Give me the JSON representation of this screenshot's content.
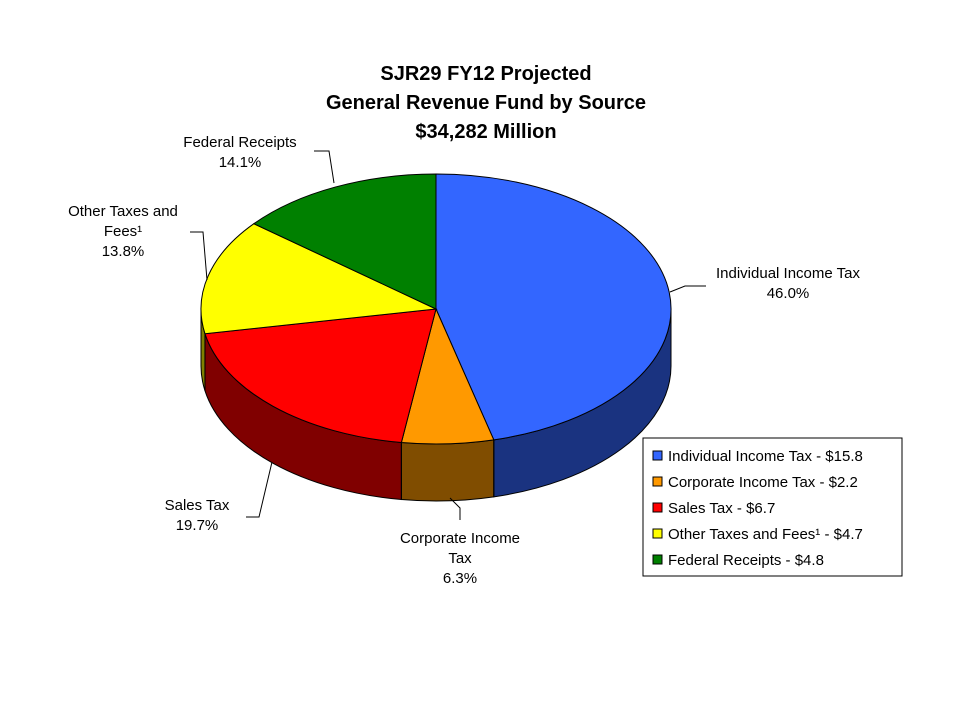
{
  "chart_data": {
    "type": "pie",
    "title_lines": [
      "SJR29 FY12 Projected",
      "General Revenue Fund by Source",
      "$34,282 Million"
    ],
    "slices": [
      {
        "name": "Individual Income Tax",
        "percent": 46.0,
        "percent_label": "46.0%",
        "label_lines": [
          "Individual Income Tax"
        ],
        "legend": "Individual Income Tax - $15.8",
        "amount": 15.8,
        "color": "#3366FF",
        "side_color": "#1A3380"
      },
      {
        "name": "Corporate Income Tax",
        "percent": 6.3,
        "percent_label": "6.3%",
        "label_lines": [
          "Corporate Income",
          "Tax"
        ],
        "legend": "Corporate Income Tax - $2.2",
        "amount": 2.2,
        "color": "#FF9900",
        "side_color": "#804D00"
      },
      {
        "name": "Sales Tax",
        "percent": 19.7,
        "percent_label": "19.7%",
        "label_lines": [
          "Sales Tax"
        ],
        "legend": "Sales Tax - $6.7",
        "amount": 6.7,
        "color": "#FF0000",
        "side_color": "#800000"
      },
      {
        "name": "Other Taxes and Fees¹",
        "percent": 13.8,
        "percent_label": "13.8%",
        "label_lines": [
          "Other Taxes and",
          "Fees¹"
        ],
        "legend": "Other Taxes and Fees¹ - $4.7",
        "amount": 4.7,
        "color": "#FFFF00",
        "side_color": "#808000"
      },
      {
        "name": "Federal Receipts",
        "percent": 14.1,
        "percent_label": "14.1%",
        "label_lines": [
          "Federal Receipts"
        ],
        "legend": "Federal Receipts - $4.8",
        "amount": 4.8,
        "color": "#008000",
        "side_color": "#004000"
      }
    ],
    "legend_position": "bottom-right",
    "start_angle": "12 o'clock",
    "direction": "clockwise",
    "style": "3d-pie"
  }
}
